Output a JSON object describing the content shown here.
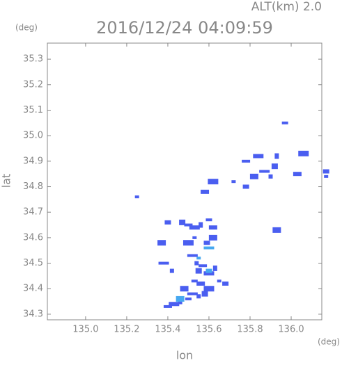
{
  "chart_data": {
    "type": "scatter",
    "title": "2016/12/24 04:09:59",
    "subtitle": "ALT(km) 2.0",
    "xlabel": "lon",
    "ylabel": "lat",
    "xunit": "(deg)",
    "yunit": "(deg)",
    "xlim": [
      134.814,
      136.149
    ],
    "ylim": [
      34.278,
      35.363
    ],
    "xticks": [
      {
        "value": 135,
        "label": "135.0"
      },
      135.2,
      135.4,
      135.6,
      135.8,
      {
        "value": 136,
        "label": "136.0"
      }
    ],
    "yticks": [
      34.3,
      34.4,
      34.5,
      34.6,
      34.7,
      34.8,
      34.9,
      {
        "value": 35,
        "label": "35.0"
      },
      35.1,
      35.2,
      35.3
    ],
    "series": [
      {
        "color": "#4a5ef0",
        "x": [
          135.25,
          135.4,
          135.37,
          135.38,
          135.42,
          135.47,
          135.5,
          135.53,
          135.56,
          135.6,
          135.62,
          135.5,
          135.53,
          135.59,
          135.62,
          135.52,
          135.54,
          135.55,
          135.57,
          135.6,
          135.63,
          135.53,
          135.56,
          135.6,
          135.65,
          135.68,
          135.48,
          135.52,
          135.55,
          135.58,
          135.4,
          135.43,
          135.46,
          135.5,
          135.58,
          135.62,
          135.72,
          135.78,
          135.82,
          135.87,
          135.9,
          135.92,
          135.78,
          135.84,
          135.93,
          135.97,
          136.03,
          136.06,
          136.17,
          136.17,
          135.93
        ],
        "y": [
          34.76,
          34.66,
          34.58,
          34.5,
          34.47,
          34.66,
          34.65,
          34.64,
          34.65,
          34.67,
          34.64,
          34.58,
          34.6,
          34.58,
          34.6,
          34.53,
          34.5,
          34.47,
          34.49,
          34.46,
          34.48,
          34.43,
          34.42,
          34.4,
          34.43,
          34.42,
          34.4,
          34.38,
          34.37,
          34.38,
          34.33,
          34.34,
          34.35,
          34.36,
          34.78,
          34.82,
          34.82,
          34.8,
          34.84,
          34.86,
          34.84,
          34.88,
          34.9,
          34.92,
          34.92,
          35.05,
          34.85,
          34.93,
          34.84,
          34.86,
          34.63
        ]
      },
      {
        "color": "#46a8f0",
        "x": [
          135.55,
          135.6,
          135.46,
          135.6
        ],
        "y": [
          34.52,
          34.47,
          34.36,
          34.56
        ]
      }
    ]
  }
}
